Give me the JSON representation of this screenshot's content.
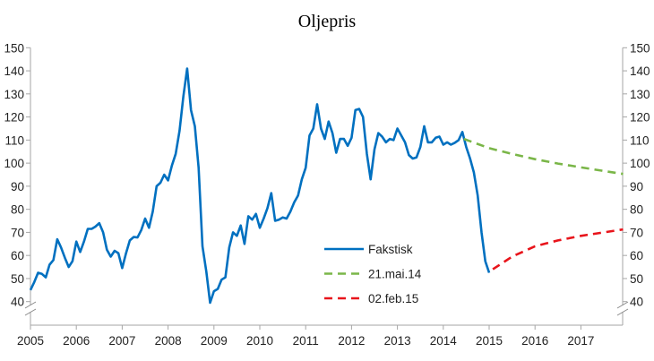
{
  "chart_data": {
    "type": "line",
    "title": "Oljepris",
    "xlabel": "",
    "ylabel": "",
    "xlim": [
      2005,
      2017.92
    ],
    "ylim": [
      40,
      150
    ],
    "y_axis_break_below": 40,
    "x_ticks": [
      "2005",
      "2006",
      "2007",
      "2008",
      "2009",
      "2010",
      "2011",
      "2012",
      "2013",
      "2014",
      "2015",
      "2016",
      "2017"
    ],
    "y_ticks_left": [
      "40",
      "50",
      "60",
      "70",
      "80",
      "90",
      "100",
      "110",
      "120",
      "130",
      "140",
      "150"
    ],
    "y_ticks_right": [
      "40",
      "50",
      "60",
      "70",
      "80",
      "90",
      "100",
      "110",
      "120",
      "130",
      "140",
      "150"
    ],
    "grid": false,
    "legend_position": "center-right",
    "series": [
      {
        "name": "Fakstisk",
        "color": "#0070c0",
        "style": "solid",
        "x_start": 2005.0,
        "x_step_months": 1,
        "values": [
          45,
          48.5,
          52.5,
          52,
          50.5,
          56,
          58,
          67,
          63.5,
          59,
          55,
          57.5,
          66,
          61.5,
          66,
          71.5,
          71.5,
          72.5,
          74,
          70,
          62.5,
          59.5,
          62,
          61,
          54.5,
          61,
          66.5,
          68,
          67.8,
          71,
          76,
          72,
          79,
          90,
          91.5,
          95,
          92.5,
          99,
          104,
          114,
          129,
          141,
          123,
          116,
          98,
          64,
          53,
          39.5,
          44.5,
          45.5,
          49.5,
          50.5,
          63.5,
          70,
          68.5,
          73,
          65,
          77,
          75.5,
          78,
          72,
          76,
          80.5,
          87,
          75,
          75.5,
          76.5,
          76,
          79,
          83,
          86,
          93,
          98,
          112,
          115,
          125.5,
          115,
          110.5,
          118,
          113,
          104.5,
          110.5,
          110.5,
          107.5,
          111,
          123,
          123.5,
          120,
          104,
          93,
          106,
          113,
          111.5,
          109,
          110.5,
          110,
          115,
          112,
          109,
          103.5,
          102,
          102.5,
          107,
          116,
          109,
          109,
          111,
          111.5,
          108,
          109,
          108,
          108.8,
          110,
          113.5,
          107,
          102,
          96,
          86,
          70,
          57.5,
          52.5
        ]
      },
      {
        "name": "21.mai.14",
        "color": "#7ab648",
        "style": "dashed",
        "x": [
          2014.45,
          2015,
          2015.5,
          2016,
          2016.5,
          2017,
          2017.5,
          2017.92
        ],
        "values": [
          110.5,
          106.5,
          104,
          101.7,
          99.8,
          98.2,
          96.6,
          95.3
        ]
      },
      {
        "name": "02.feb.15",
        "color": "#e8141b",
        "style": "dashed",
        "x": [
          2015.08,
          2015.5,
          2016,
          2016.5,
          2017,
          2017.5,
          2017.92
        ],
        "values": [
          54,
          59.5,
          64,
          66.5,
          68.5,
          70,
          71.3
        ]
      }
    ]
  }
}
